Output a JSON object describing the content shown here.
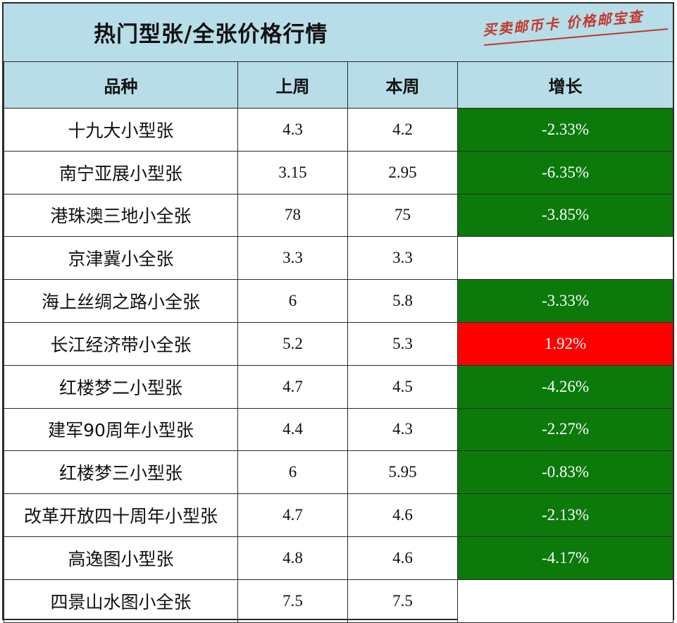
{
  "title": "热门型张/全张价格行情",
  "watermark": "买卖邮币卡 价格邮宝查",
  "colors": {
    "header_bg": "#b7dde8",
    "decrease": "#0b7a0b",
    "increase": "#ff0000"
  },
  "columns": [
    "品种",
    "上周",
    "本周",
    "增长"
  ],
  "rows": [
    {
      "name": "十九大小型张",
      "last_week": "4.3",
      "this_week": "4.2",
      "change": "-2.33%",
      "trend": "down"
    },
    {
      "name": "南宁亚展小型张",
      "last_week": "3.15",
      "this_week": "2.95",
      "change": "-6.35%",
      "trend": "down"
    },
    {
      "name": "港珠澳三地小全张",
      "last_week": "78",
      "this_week": "75",
      "change": "-3.85%",
      "trend": "down"
    },
    {
      "name": "京津冀小全张",
      "last_week": "3.3",
      "this_week": "3.3",
      "change": "",
      "trend": "none"
    },
    {
      "name": "海上丝绸之路小全张",
      "last_week": "6",
      "this_week": "5.8",
      "change": "-3.33%",
      "trend": "down"
    },
    {
      "name": "长江经济带小全张",
      "last_week": "5.2",
      "this_week": "5.3",
      "change": "1.92%",
      "trend": "up"
    },
    {
      "name": "红楼梦二小型张",
      "last_week": "4.7",
      "this_week": "4.5",
      "change": "-4.26%",
      "trend": "down"
    },
    {
      "name": "建军90周年小型张",
      "last_week": "4.4",
      "this_week": "4.3",
      "change": "-2.27%",
      "trend": "down"
    },
    {
      "name": "红楼梦三小型张",
      "last_week": "6",
      "this_week": "5.95",
      "change": "-0.83%",
      "trend": "down"
    },
    {
      "name": "改革开放四十周年小型张",
      "last_week": "4.7",
      "this_week": "4.6",
      "change": "-2.13%",
      "trend": "down"
    },
    {
      "name": "高逸图小型张",
      "last_week": "4.8",
      "this_week": "4.6",
      "change": "-4.17%",
      "trend": "down"
    },
    {
      "name": "四景山水图小全张",
      "last_week": "7.5",
      "this_week": "7.5",
      "change": "",
      "trend": "none"
    }
  ]
}
